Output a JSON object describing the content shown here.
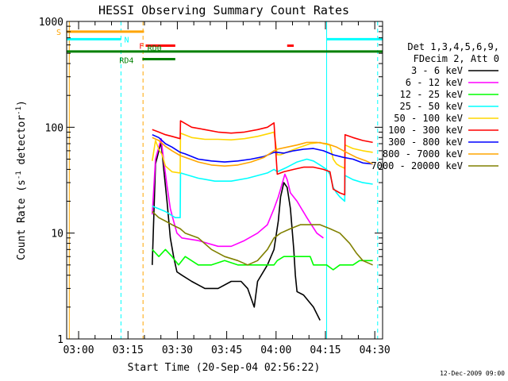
{
  "chart_data": {
    "type": "line",
    "title": "HESSI Observing Summary Count Rates",
    "xlabel": "Start Time (20-Sep-04 02:56:22)",
    "ylabel": "Count Rate (s",
    "ylabel_sup": "-1",
    "ylabel_mid": " detector",
    "ylabel_end": ")",
    "y_scale": "log",
    "ylim": [
      1,
      1000
    ],
    "xlim_minutes": [
      0,
      96
    ],
    "y_ticks": [
      {
        "value": 1,
        "label": "1"
      },
      {
        "value": 10,
        "label": "10"
      },
      {
        "value": 100,
        "label": "100"
      },
      {
        "value": 1000,
        "label": "1000"
      }
    ],
    "x_ticks": [
      {
        "minute": 3.63,
        "label": "03:00"
      },
      {
        "minute": 18.63,
        "label": "03:15"
      },
      {
        "minute": 33.63,
        "label": "03:30"
      },
      {
        "minute": 48.63,
        "label": "03:45"
      },
      {
        "minute": 63.63,
        "label": "04:00"
      },
      {
        "minute": 78.63,
        "label": "04:15"
      },
      {
        "minute": 93.63,
        "label": "04:30"
      }
    ],
    "legend_header": [
      "Det 1,3,4,5,6,9,",
      "FDecim 2, Att 0"
    ],
    "legend_position": "right",
    "series": [
      {
        "name": "3 - 6 keV",
        "color": "#000000",
        "points": [
          [
            26,
            5
          ],
          [
            27,
            45
          ],
          [
            28,
            60
          ],
          [
            28.7,
            72
          ],
          [
            29.5,
            40
          ],
          [
            30.5,
            20
          ],
          [
            31.5,
            9
          ],
          [
            32.5,
            6
          ],
          [
            33.5,
            4.3
          ],
          [
            35,
            4
          ],
          [
            38,
            3.5
          ],
          [
            42,
            3
          ],
          [
            46,
            3
          ],
          [
            50,
            3.5
          ],
          [
            53,
            3.5
          ],
          [
            55,
            3
          ],
          [
            57,
            2
          ],
          [
            58,
            3.5
          ],
          [
            61,
            5
          ],
          [
            63,
            7
          ],
          [
            64.3,
            13
          ],
          [
            65,
            22
          ],
          [
            66,
            30
          ],
          [
            67,
            27
          ],
          [
            68,
            17
          ],
          [
            69,
            7
          ],
          [
            69.5,
            4
          ],
          [
            70,
            2.8
          ],
          [
            72,
            2.6
          ],
          [
            75,
            2
          ],
          [
            77,
            1.5
          ]
        ]
      },
      {
        "name": "6 - 12 keV",
        "color": "#ff00ff",
        "points": [
          [
            26,
            15
          ],
          [
            27,
            50
          ],
          [
            28,
            65
          ],
          [
            28.7,
            78
          ],
          [
            29.5,
            48
          ],
          [
            30.5,
            28
          ],
          [
            31.5,
            17
          ],
          [
            32.5,
            13
          ],
          [
            33.5,
            10
          ],
          [
            35,
            9
          ],
          [
            40,
            8.5
          ],
          [
            46,
            7.5
          ],
          [
            50,
            7.5
          ],
          [
            54,
            8.5
          ],
          [
            58,
            10
          ],
          [
            61,
            12
          ],
          [
            63,
            17
          ],
          [
            64.3,
            22
          ],
          [
            65.3,
            28
          ],
          [
            66.3,
            36
          ],
          [
            67,
            32
          ],
          [
            68,
            24
          ],
          [
            70,
            20
          ],
          [
            73,
            14
          ],
          [
            76,
            10
          ],
          [
            78,
            9
          ]
        ]
      },
      {
        "name": "12 - 25 keV",
        "color": "#00ff00",
        "points": [
          [
            26,
            7
          ],
          [
            28,
            6
          ],
          [
            30,
            7
          ],
          [
            32,
            6
          ],
          [
            34,
            5
          ],
          [
            36,
            6
          ],
          [
            40,
            5
          ],
          [
            44,
            5
          ],
          [
            48,
            5.5
          ],
          [
            52,
            5
          ],
          [
            56,
            5
          ],
          [
            60,
            5
          ],
          [
            63,
            5
          ],
          [
            64,
            5.5
          ],
          [
            66,
            6
          ],
          [
            68,
            6
          ],
          [
            70,
            6
          ],
          [
            72,
            6
          ],
          [
            74,
            6
          ],
          [
            75,
            5
          ],
          [
            77,
            5
          ],
          [
            79,
            5
          ],
          [
            81,
            4.5
          ],
          [
            83,
            5
          ],
          [
            85,
            5
          ],
          [
            87,
            5
          ],
          [
            89,
            5.5
          ],
          [
            91,
            5.5
          ],
          [
            93,
            5.5
          ]
        ]
      },
      {
        "name": "25 - 50 keV",
        "color": "#00ffff",
        "points": [
          [
            26,
            18
          ],
          [
            30,
            16
          ],
          [
            33,
            14
          ],
          [
            34.5,
            14
          ],
          [
            34.6,
            37
          ],
          [
            40,
            33
          ],
          [
            45,
            31
          ],
          [
            50,
            31
          ],
          [
            55,
            33
          ],
          [
            61,
            37
          ],
          [
            63,
            40
          ],
          [
            64,
            38
          ],
          [
            67,
            42
          ],
          [
            70,
            47
          ],
          [
            73,
            50
          ],
          [
            75,
            48
          ],
          [
            77,
            44
          ],
          [
            79,
            40
          ],
          [
            80,
            36
          ],
          [
            81,
            27
          ],
          [
            82,
            24
          ],
          [
            83,
            22
          ],
          [
            84.5,
            20
          ],
          [
            84.6,
            35
          ],
          [
            87,
            32
          ],
          [
            90,
            30
          ],
          [
            93,
            29
          ]
        ]
      },
      {
        "name": "50 - 100 keV",
        "color": "#ffd700",
        "points": [
          [
            26,
            48
          ],
          [
            27,
            75
          ],
          [
            28,
            62
          ],
          [
            29,
            55
          ],
          [
            30,
            43
          ],
          [
            32,
            38
          ],
          [
            34.5,
            37
          ],
          [
            34.6,
            88
          ],
          [
            38,
            80
          ],
          [
            42,
            77
          ],
          [
            46,
            77
          ],
          [
            50,
            76
          ],
          [
            54,
            78
          ],
          [
            58,
            82
          ],
          [
            62,
            88
          ],
          [
            63,
            90
          ],
          [
            64,
            55
          ],
          [
            65,
            55
          ],
          [
            68,
            60
          ],
          [
            71,
            65
          ],
          [
            74,
            70
          ],
          [
            77,
            72
          ],
          [
            78,
            70
          ],
          [
            80,
            68
          ],
          [
            81,
            50
          ],
          [
            82,
            45
          ],
          [
            83,
            43
          ],
          [
            84.5,
            41
          ],
          [
            84.6,
            68
          ],
          [
            87,
            63
          ],
          [
            90,
            60
          ],
          [
            93,
            58
          ]
        ]
      },
      {
        "name": "100 - 300 keV",
        "color": "#ff0000",
        "points": [
          [
            26,
            95
          ],
          [
            28,
            90
          ],
          [
            30,
            85
          ],
          [
            32,
            82
          ],
          [
            34.5,
            78
          ],
          [
            34.6,
            115
          ],
          [
            38,
            100
          ],
          [
            42,
            95
          ],
          [
            46,
            90
          ],
          [
            50,
            88
          ],
          [
            54,
            90
          ],
          [
            58,
            95
          ],
          [
            61,
            100
          ],
          [
            63,
            110
          ],
          [
            64,
            36
          ],
          [
            66,
            38
          ],
          [
            69,
            40
          ],
          [
            72,
            42
          ],
          [
            75,
            42
          ],
          [
            78,
            40
          ],
          [
            80,
            38
          ],
          [
            81,
            26
          ],
          [
            83,
            24
          ],
          [
            84.5,
            23
          ],
          [
            84.6,
            85
          ],
          [
            87,
            80
          ],
          [
            90,
            75
          ],
          [
            93,
            72
          ]
        ]
      },
      {
        "name": "300 - 800 keV",
        "color": "#0000ff",
        "points": [
          [
            26,
            85
          ],
          [
            28,
            80
          ],
          [
            30,
            70
          ],
          [
            32,
            65
          ],
          [
            34.5,
            58
          ],
          [
            36,
            56
          ],
          [
            40,
            50
          ],
          [
            44,
            48
          ],
          [
            48,
            47
          ],
          [
            52,
            48
          ],
          [
            56,
            50
          ],
          [
            60,
            53
          ],
          [
            63,
            58
          ],
          [
            64,
            58
          ],
          [
            66,
            57
          ],
          [
            69,
            60
          ],
          [
            72,
            62
          ],
          [
            75,
            63
          ],
          [
            78,
            60
          ],
          [
            81,
            55
          ],
          [
            84,
            52
          ],
          [
            87,
            50
          ],
          [
            90,
            46
          ],
          [
            93,
            45
          ]
        ]
      },
      {
        "name": "800 - 7000 keV",
        "color": "#ffa500",
        "points": [
          [
            26,
            80
          ],
          [
            28,
            75
          ],
          [
            30,
            66
          ],
          [
            32,
            60
          ],
          [
            34.5,
            54
          ],
          [
            36,
            52
          ],
          [
            40,
            47
          ],
          [
            44,
            44
          ],
          [
            48,
            43
          ],
          [
            52,
            44
          ],
          [
            56,
            47
          ],
          [
            60,
            52
          ],
          [
            63,
            60
          ],
          [
            64,
            62
          ],
          [
            67,
            65
          ],
          [
            70,
            68
          ],
          [
            73,
            72
          ],
          [
            76,
            72
          ],
          [
            79,
            70
          ],
          [
            82,
            65
          ],
          [
            85,
            58
          ],
          [
            88,
            52
          ],
          [
            91,
            48
          ],
          [
            93,
            45
          ]
        ]
      },
      {
        "name": "7000 - 20000 keV",
        "color": "#808000",
        "points": [
          [
            26,
            16
          ],
          [
            28,
            14
          ],
          [
            30,
            13
          ],
          [
            32,
            12
          ],
          [
            34.5,
            11
          ],
          [
            36,
            10
          ],
          [
            40,
            9
          ],
          [
            44,
            7
          ],
          [
            48,
            6
          ],
          [
            52,
            5.5
          ],
          [
            55,
            5
          ],
          [
            58,
            5.5
          ],
          [
            61,
            7
          ],
          [
            63,
            9
          ],
          [
            65,
            10
          ],
          [
            68,
            11
          ],
          [
            71,
            12
          ],
          [
            74,
            12
          ],
          [
            77,
            12
          ],
          [
            80,
            11
          ],
          [
            83,
            10
          ],
          [
            86,
            8
          ],
          [
            88,
            6.5
          ],
          [
            90,
            5.5
          ],
          [
            93,
            5
          ]
        ]
      }
    ],
    "state_bars": [
      {
        "label": "S",
        "color": "#ffa500",
        "level": 800,
        "segments": [
          [
            0,
            23.5
          ]
        ]
      },
      {
        "label": "N",
        "color": "#00ffff",
        "level": 680,
        "segments": [
          [
            0,
            16.5
          ],
          [
            79,
            96
          ]
        ]
      },
      {
        "label": "F",
        "color": "#ff0000",
        "level": 590,
        "segments": [
          [
            24,
            33
          ],
          [
            67,
            69
          ]
        ]
      },
      {
        "label": "RD0",
        "color": "#008000",
        "level": 520,
        "segments": [
          [
            0,
            96
          ]
        ]
      },
      {
        "label": "RD4",
        "color": "#008000",
        "level": 440,
        "segments": [
          [
            23,
            33
          ]
        ]
      }
    ],
    "vlines": [
      {
        "minute": 16.5,
        "color": "#00ffff",
        "style": "dashed"
      },
      {
        "minute": 23.2,
        "color": "#ffa500",
        "style": "dashed"
      },
      {
        "minute": 0.8,
        "color": "#ffa500",
        "style": "solid"
      },
      {
        "minute": 79,
        "color": "#00ffff",
        "style": "solid"
      },
      {
        "minute": 94.5,
        "color": "#00ffff",
        "style": "dashed"
      }
    ],
    "footer_date": "12-Dec-2009 09:00"
  }
}
